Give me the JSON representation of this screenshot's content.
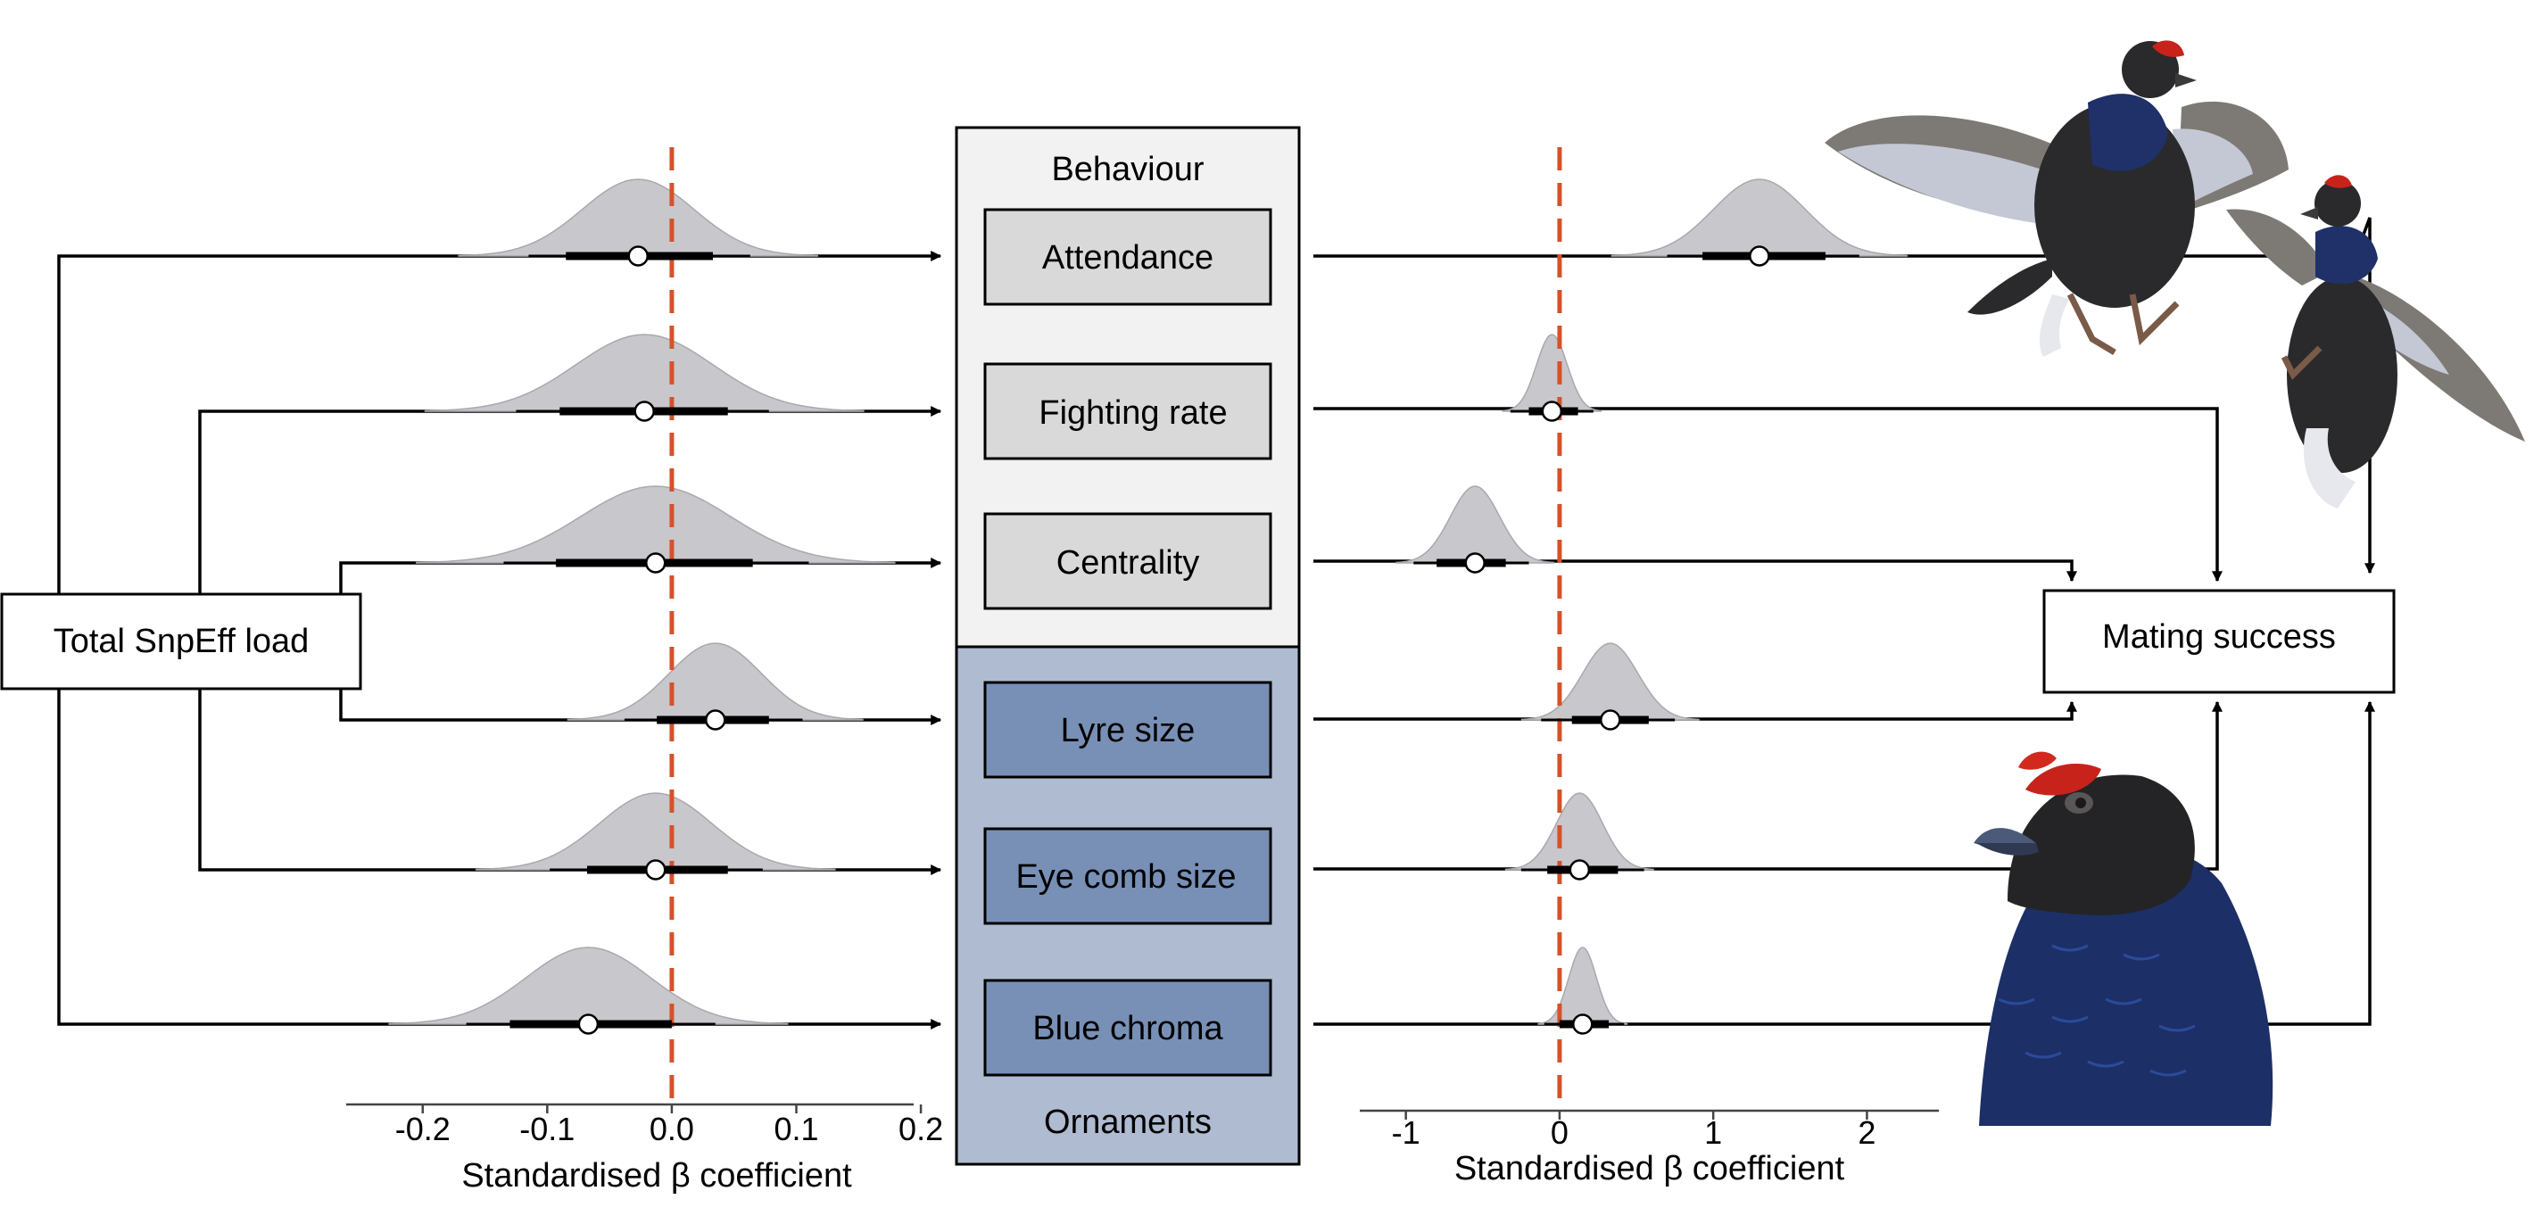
{
  "source_node": {
    "label": "Total SnpEff load"
  },
  "behaviour_group": {
    "title": "Behaviour",
    "traits": [
      {
        "label": "Attendance"
      },
      {
        "label": "Fighting rate"
      },
      {
        "label": "Centrality"
      }
    ]
  },
  "ornaments_group": {
    "title": "Ornaments",
    "traits": [
      {
        "label": "Lyre size"
      },
      {
        "label": "Eye comb size"
      },
      {
        "label": "Blue chroma"
      }
    ]
  },
  "target_node": {
    "label": "Mating success"
  },
  "colors": {
    "behaviour_panel": "#f2f2f2",
    "behaviour_box": "#d9d9d9",
    "ornaments_panel": "#aebbd0",
    "ornaments_box": "#7890b6",
    "density_fill": "#c8c7cc",
    "zero_line": "#d2532a"
  },
  "chart_data": [
    {
      "type": "posterior-interval",
      "xlabel": "Standardised β coefficient",
      "xlim": [
        -0.26,
        0.22
      ],
      "ticks": [
        -0.2,
        -0.1,
        0.0,
        0.1,
        0.2
      ],
      "tick_labels": [
        "-0.2",
        "-0.1",
        "0.0",
        "0.1",
        "0.2"
      ],
      "reference_line": 0,
      "series": [
        {
          "name": "Attendance",
          "median": -0.027,
          "inner": [
            -0.085,
            0.033
          ],
          "outer": [
            -0.115,
            0.063
          ],
          "sd": 0.045
        },
        {
          "name": "Fighting rate",
          "median": -0.022,
          "inner": [
            -0.09,
            0.045
          ],
          "outer": [
            -0.125,
            0.078
          ],
          "sd": 0.055
        },
        {
          "name": "Centrality",
          "median": -0.013,
          "inner": [
            -0.093,
            0.065
          ],
          "outer": [
            -0.135,
            0.11
          ],
          "sd": 0.06
        },
        {
          "name": "Lyre size",
          "median": 0.035,
          "inner": [
            -0.012,
            0.078
          ],
          "outer": [
            -0.038,
            0.105
          ],
          "sd": 0.037
        },
        {
          "name": "Eye comb size",
          "median": -0.013,
          "inner": [
            -0.068,
            0.045
          ],
          "outer": [
            -0.098,
            0.073
          ],
          "sd": 0.045
        },
        {
          "name": "Blue chroma",
          "median": -0.067,
          "inner": [
            -0.13,
            0.0
          ],
          "outer": [
            -0.165,
            0.035
          ],
          "sd": 0.05
        }
      ]
    },
    {
      "type": "posterior-interval",
      "xlabel": "Standardised β coefficient",
      "xlim": [
        -1.3,
        2.7
      ],
      "ticks": [
        -1,
        0,
        1,
        2
      ],
      "tick_labels": [
        "-1",
        "0",
        "1",
        "2"
      ],
      "reference_line": 0,
      "series": [
        {
          "name": "Attendance",
          "median": 1.3,
          "inner": [
            0.93,
            1.73
          ],
          "outer": [
            0.7,
            1.95
          ],
          "sd": 0.3
        },
        {
          "name": "Fighting rate",
          "median": -0.05,
          "inner": [
            -0.2,
            0.12
          ],
          "outer": [
            -0.32,
            0.22
          ],
          "sd": 0.1
        },
        {
          "name": "Centrality",
          "median": -0.55,
          "inner": [
            -0.8,
            -0.35
          ],
          "outer": [
            -0.95,
            -0.2
          ],
          "sd": 0.16
        },
        {
          "name": "Lyre size",
          "median": 0.33,
          "inner": [
            0.08,
            0.58
          ],
          "outer": [
            -0.12,
            0.75
          ],
          "sd": 0.18
        },
        {
          "name": "Eye comb size",
          "median": 0.13,
          "inner": [
            -0.08,
            0.38
          ],
          "outer": [
            -0.25,
            0.55
          ],
          "sd": 0.15
        },
        {
          "name": "Blue chroma",
          "median": 0.15,
          "inner": [
            0.0,
            0.32
          ],
          "outer": [
            -0.1,
            0.42
          ],
          "sd": 0.09
        }
      ]
    }
  ],
  "illustrations": [
    {
      "icon": "fighting-grouse-illustration"
    },
    {
      "icon": "grouse-head-illustration"
    }
  ]
}
